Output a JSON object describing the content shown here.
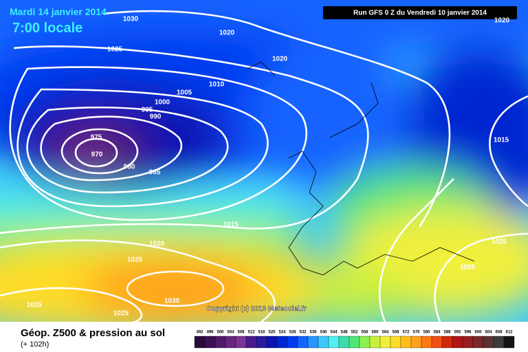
{
  "header": {
    "date": "Mardi 14 janvier 2014",
    "time": "7:00 locale",
    "run": "Run GFS 0 Z du Vendredi 10 janvier 2014"
  },
  "copyright": "Copyright (c) 2013 Meteociel.fr",
  "isobar_labels": [
    1030,
    1020,
    1025,
    1020,
    1010,
    1005,
    1000,
    995,
    990,
    975,
    970,
    980,
    985,
    1015,
    1020,
    1025,
    1030,
    1025,
    1025,
    1015,
    1025,
    1020,
    1020
  ],
  "footer": {
    "title": "Géop. Z500 & pression au sol",
    "lead": "(+ 102h)"
  },
  "colorbar": {
    "labels": [
      492,
      496,
      500,
      504,
      508,
      512,
      516,
      520,
      524,
      528,
      532,
      536,
      540,
      544,
      548,
      552,
      556,
      560,
      564,
      568,
      572,
      576,
      580,
      584,
      588,
      592,
      596,
      600,
      604,
      608,
      612
    ],
    "colors": [
      "#2b0a3d",
      "#3d0f55",
      "#521a6b",
      "#662680",
      "#7a3594",
      "#4a1a8c",
      "#2a1aa0",
      "#0a14b4",
      "#0028d2",
      "#003cf0",
      "#1464ff",
      "#2896ff",
      "#3cc8ff",
      "#50f0f0",
      "#3cdcaa",
      "#50e678",
      "#8cf050",
      "#c8f03c",
      "#f0f03c",
      "#ffdc28",
      "#ffbe1e",
      "#ffa01e",
      "#ff7814",
      "#f05014",
      "#d2280a",
      "#b41414",
      "#961e1e",
      "#782828",
      "#5a3232",
      "#3c3c3c",
      "#141414"
    ]
  }
}
